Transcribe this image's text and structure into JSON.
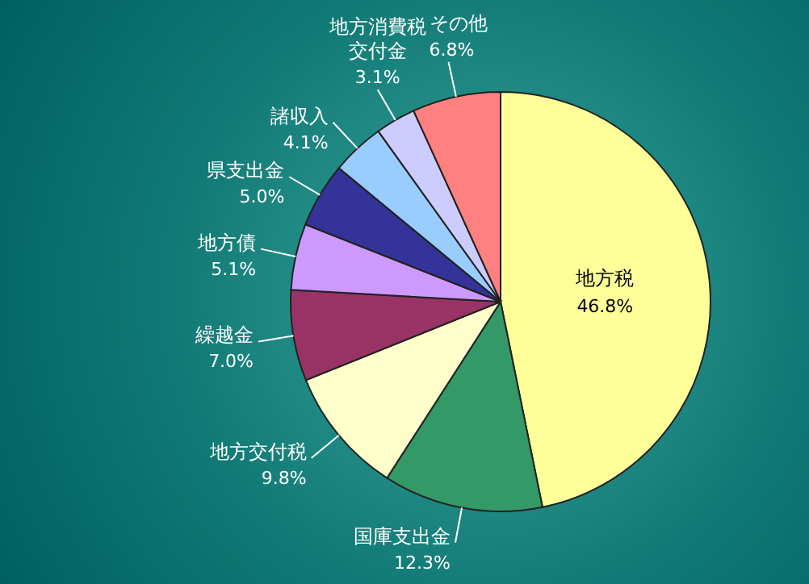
{
  "chart_data": {
    "type": "pie",
    "categories": [
      "地方税",
      "国庫支出金",
      "地方交付税",
      "繰越金",
      "地方債",
      "県支出金",
      "諸収入",
      "地方消費税交付金",
      "その他"
    ],
    "values": [
      46.8,
      12.3,
      9.8,
      7.0,
      5.1,
      5.0,
      4.1,
      3.1,
      6.8
    ],
    "value_labels": [
      "46.8%",
      "12.3%",
      "9.8%",
      "7.0%",
      "5.1%",
      "5.0%",
      "4.1%",
      "3.1%",
      "6.8%"
    ],
    "colors": [
      "#ffff99",
      "#339966",
      "#ffffcc",
      "#993366",
      "#cc99ff",
      "#333399",
      "#99ccff",
      "#ccccff",
      "#ff8080"
    ]
  }
}
